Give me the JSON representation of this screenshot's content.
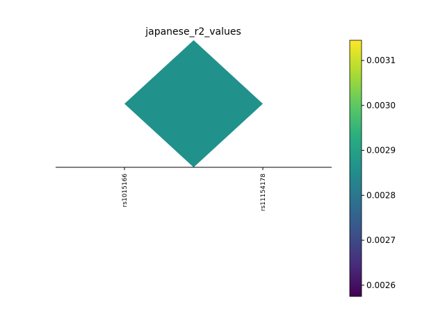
{
  "chart_data": {
    "type": "heatmap",
    "title": "japanese_r2_values",
    "xlabel": "",
    "ylabel": "",
    "variants": [
      "rs1015166",
      "rs11154178"
    ],
    "cells": [
      {
        "row": "rs1015166",
        "col": "rs11154178",
        "r2": 0.00286
      }
    ],
    "colorbar": {
      "colormap": "viridis",
      "range": [
        0.002575,
        0.003145
      ],
      "ticks": [
        "0.0026",
        "0.0027",
        "0.0028",
        "0.0029",
        "0.0030",
        "0.0031"
      ],
      "tick_values": [
        0.0026,
        0.0027,
        0.0028,
        0.0029,
        0.003,
        0.0031
      ]
    },
    "grid": false,
    "legend": "colorbar-right"
  }
}
